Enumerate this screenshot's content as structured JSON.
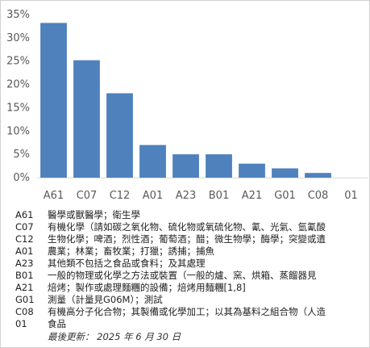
{
  "chart_data": {
    "type": "bar",
    "categories": [
      "A61",
      "C07",
      "C12",
      "A01",
      "A23",
      "B01",
      "A21",
      "G01",
      "C08",
      "01"
    ],
    "values": [
      33.2,
      25.2,
      18.1,
      7.0,
      5.0,
      5.0,
      3.0,
      2.0,
      1.0,
      0
    ],
    "ylim": [
      0,
      35
    ],
    "yticks": [
      "0%",
      "5%",
      "10%",
      "15%",
      "20%",
      "25%",
      "30%",
      "35%"
    ],
    "color": "#4f81bd",
    "grid": false
  },
  "legend": [
    {
      "code": "A61",
      "desc": "醫學或獸醫學；衛生學"
    },
    {
      "code": "C07",
      "desc": "有機化學（請如碳之氧化物、硫化物或氧硫化物、氰、光氣、氫氰酸"
    },
    {
      "code": "C12",
      "desc": "生物化學；啤酒；烈性酒；葡萄酒；醋；微生物學；酶學；突變或遺"
    },
    {
      "code": "A01",
      "desc": "農業；林業；畜牧業；打獵；誘捕；捕魚"
    },
    {
      "code": "A23",
      "desc": "其他類不包括之食品或食料；及其處理"
    },
    {
      "code": "B01",
      "desc": "一般的物理或化學之方法或裝置（一般的爐、窯、烘箱、蒸餾器見"
    },
    {
      "code": "A21",
      "desc": "焙烤；製作或處理麵糰的設備；焙烤用麵糰[1,8]"
    },
    {
      "code": "G01",
      "desc": "測量（計量見G06M）；測試"
    },
    {
      "code": "C08",
      "desc": "有機高分子化合物；其製備或化學加工；以其為基料之組合物（人造"
    },
    {
      "code": "01",
      "desc": "食品"
    }
  ],
  "footer": {
    "updated": "最後更新： 2025 年 6 月 30 日"
  }
}
